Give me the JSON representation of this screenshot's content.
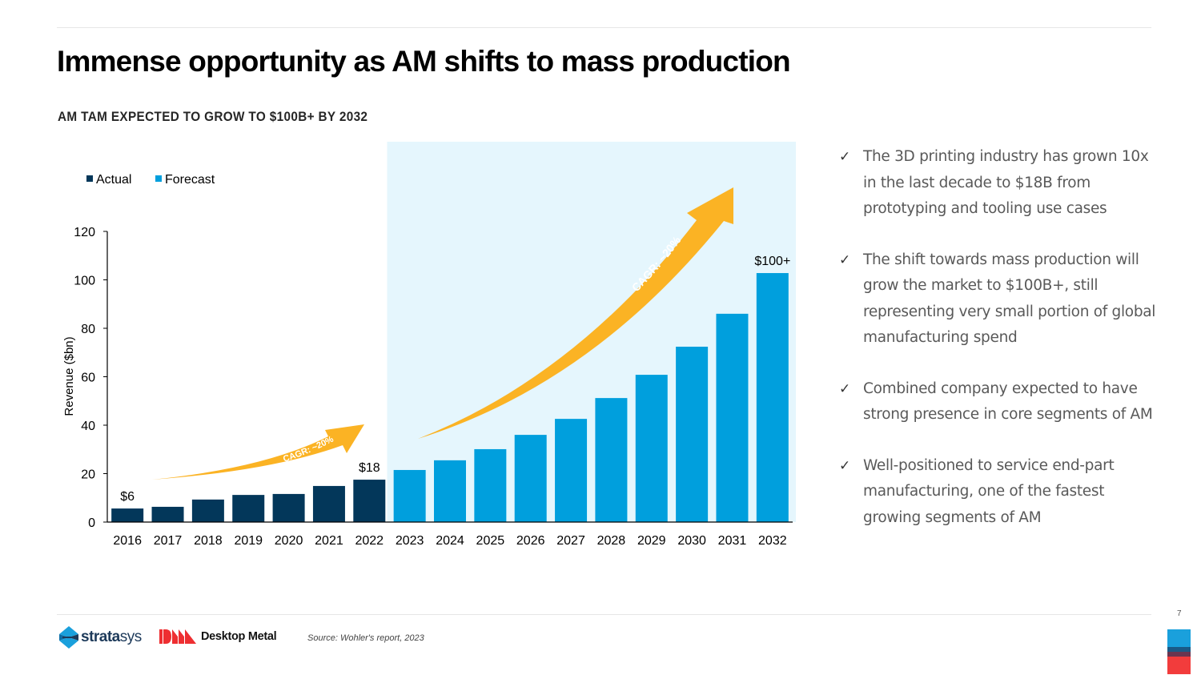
{
  "header": {
    "title": "Immense opportunity as AM shifts to mass production",
    "subtitle": "AM TAM EXPECTED TO GROW TO $100B+ BY 2032"
  },
  "chart_data": {
    "type": "bar",
    "title": "AM TAM EXPECTED TO GROW TO $100B+ BY 2032",
    "xlabel": "",
    "ylabel": "Revenue ($bn)",
    "ylim": [
      0,
      120
    ],
    "yticks": [
      0,
      20,
      40,
      60,
      80,
      100,
      120
    ],
    "grid": false,
    "legend_position": "top-left",
    "categories": [
      "2016",
      "2017",
      "2018",
      "2019",
      "2020",
      "2021",
      "2022",
      "2023",
      "2024",
      "2025",
      "2026",
      "2027",
      "2028",
      "2029",
      "2030",
      "2031",
      "2032"
    ],
    "series": [
      {
        "name": "Actual",
        "color": "#03375a",
        "values": [
          5.6,
          6.3,
          9.3,
          11.2,
          11.6,
          14.9,
          17.5,
          null,
          null,
          null,
          null,
          null,
          null,
          null,
          null,
          null,
          null
        ]
      },
      {
        "name": "Forecast",
        "color": "#009fdd",
        "values": [
          null,
          null,
          null,
          null,
          null,
          null,
          null,
          21.5,
          25.5,
          30.1,
          36.0,
          42.6,
          51.2,
          60.8,
          72.4,
          86.0,
          102.8
        ]
      }
    ],
    "data_labels": [
      {
        "category": "2016",
        "text": "$6"
      },
      {
        "category": "2022",
        "text": "$18"
      },
      {
        "category": "2032",
        "text": "$100+"
      }
    ],
    "forecast_region": {
      "from": "2023",
      "to": "2032",
      "color": "#e5f6fd"
    },
    "annotations": [
      {
        "text": "CAGR: ~20%",
        "type": "arrow",
        "span": [
          "2017",
          "2022"
        ],
        "color": "#fbb324"
      },
      {
        "text": "CAGR: ~20%",
        "type": "arrow",
        "span": [
          "2023",
          "2031"
        ],
        "color": "#fbb324"
      }
    ]
  },
  "bullets": [
    {
      "icon": "check-icon",
      "text": "The 3D printing industry has grown 10x in the last decade to $18B from prototyping and tooling use cases"
    },
    {
      "icon": "check-icon",
      "text": "The shift towards mass production will grow the market to $100B+, still representing very small portion of global manufacturing spend"
    },
    {
      "icon": "check-icon",
      "text": "Combined company expected to have strong presence in core segments of AM"
    },
    {
      "icon": "check-icon",
      "text": "Well-positioned to service end-part manufacturing, one of the fastest growing segments of AM"
    }
  ],
  "footer": {
    "logo_stratasys": "stratasys",
    "logo_stratasys_bold": "strata",
    "logo_stratasys_light": "sys",
    "logo_desktop_metal": "Desktop Metal",
    "source": "Source: Wohler's report, 2023",
    "page_number": "7"
  },
  "colors": {
    "actual": "#03375a",
    "forecast": "#009fdd",
    "forecast_bg": "#e5f6fd",
    "arrow": "#fbb324",
    "brand_blue": "#1aa0dc",
    "brand_red": "#f23c3c"
  }
}
